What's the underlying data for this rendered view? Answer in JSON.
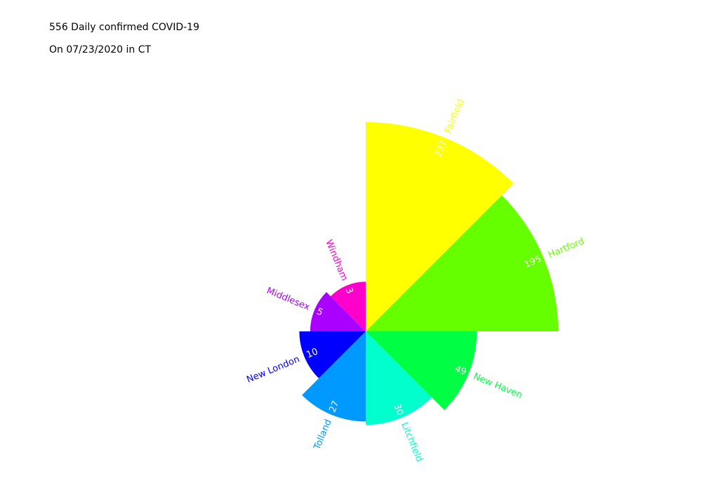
{
  "title": "556 Daily confirmed COVID-19",
  "subtitle": "On 07/23/2020 in CT",
  "chart_data": {
    "type": "polar-bar",
    "title": "556 Daily confirmed COVID-19",
    "subtitle": "On 07/23/2020 in CT",
    "categories": [
      "Hartford",
      "Fairfield",
      "Windham",
      "Middlesex",
      "New London",
      "Tolland",
      "Litchfield",
      "New Haven"
    ],
    "values": [
      195,
      237,
      3,
      5,
      10,
      27,
      30,
      49
    ],
    "colors": [
      "#66ff00",
      "#ffff00",
      "#ff00cc",
      "#aa00ff",
      "#0000ff",
      "#0099ff",
      "#00ffcc",
      "#00ff44"
    ],
    "value_label_color": "#ffffff",
    "grid": false,
    "legend": "none"
  }
}
